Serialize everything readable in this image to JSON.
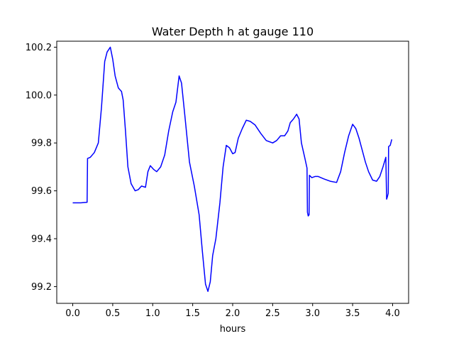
{
  "chart_data": {
    "type": "line",
    "title": "Water Depth h at gauge 110",
    "xlabel": "hours",
    "ylabel": "",
    "xlim": [
      -0.2,
      4.2
    ],
    "ylim": [
      99.13,
      100.225
    ],
    "x_ticks": [
      0.0,
      0.5,
      1.0,
      1.5,
      2.0,
      2.5,
      3.0,
      3.5,
      4.0
    ],
    "x_tick_labels": [
      "0.0",
      "0.5",
      "1.0",
      "1.5",
      "2.0",
      "2.5",
      "3.0",
      "3.5",
      "4.0"
    ],
    "y_ticks": [
      99.2,
      99.4,
      99.6,
      99.8,
      100.0,
      100.2
    ],
    "y_tick_labels": [
      "99.2",
      "99.4",
      "99.6",
      "99.8",
      "100.0",
      "100.2"
    ],
    "grid": false,
    "legend": "none",
    "series": [
      {
        "color": "#0000ff",
        "points": [
          [
            0.0,
            99.55
          ],
          [
            0.1,
            99.55
          ],
          [
            0.18,
            99.552
          ],
          [
            0.185,
            99.735
          ],
          [
            0.22,
            99.74
          ],
          [
            0.27,
            99.76
          ],
          [
            0.32,
            99.8
          ],
          [
            0.36,
            99.95
          ],
          [
            0.4,
            100.14
          ],
          [
            0.43,
            100.18
          ],
          [
            0.47,
            100.2
          ],
          [
            0.5,
            100.15
          ],
          [
            0.53,
            100.08
          ],
          [
            0.57,
            100.03
          ],
          [
            0.61,
            100.015
          ],
          [
            0.63,
            99.98
          ],
          [
            0.66,
            99.85
          ],
          [
            0.69,
            99.7
          ],
          [
            0.73,
            99.63
          ],
          [
            0.78,
            99.6
          ],
          [
            0.82,
            99.605
          ],
          [
            0.86,
            99.62
          ],
          [
            0.91,
            99.615
          ],
          [
            0.94,
            99.68
          ],
          [
            0.97,
            99.705
          ],
          [
            1.01,
            99.69
          ],
          [
            1.05,
            99.68
          ],
          [
            1.1,
            99.7
          ],
          [
            1.15,
            99.75
          ],
          [
            1.2,
            99.85
          ],
          [
            1.25,
            99.93
          ],
          [
            1.29,
            99.97
          ],
          [
            1.33,
            100.08
          ],
          [
            1.36,
            100.05
          ],
          [
            1.4,
            99.92
          ],
          [
            1.46,
            99.72
          ],
          [
            1.52,
            99.62
          ],
          [
            1.58,
            99.5
          ],
          [
            1.62,
            99.35
          ],
          [
            1.66,
            99.21
          ],
          [
            1.69,
            99.18
          ],
          [
            1.72,
            99.22
          ],
          [
            1.75,
            99.33
          ],
          [
            1.79,
            99.4
          ],
          [
            1.84,
            99.55
          ],
          [
            1.88,
            99.7
          ],
          [
            1.92,
            99.79
          ],
          [
            1.96,
            99.78
          ],
          [
            2.0,
            99.755
          ],
          [
            2.03,
            99.76
          ],
          [
            2.07,
            99.82
          ],
          [
            2.12,
            99.86
          ],
          [
            2.17,
            99.895
          ],
          [
            2.22,
            99.89
          ],
          [
            2.28,
            99.875
          ],
          [
            2.35,
            99.84
          ],
          [
            2.42,
            99.81
          ],
          [
            2.5,
            99.8
          ],
          [
            2.55,
            99.81
          ],
          [
            2.6,
            99.83
          ],
          [
            2.65,
            99.83
          ],
          [
            2.69,
            99.85
          ],
          [
            2.72,
            99.885
          ],
          [
            2.76,
            99.9
          ],
          [
            2.8,
            99.92
          ],
          [
            2.83,
            99.9
          ],
          [
            2.86,
            99.8
          ],
          [
            2.9,
            99.74
          ],
          [
            2.93,
            99.695
          ],
          [
            2.935,
            99.51
          ],
          [
            2.945,
            99.495
          ],
          [
            2.955,
            99.5
          ],
          [
            2.96,
            99.665
          ],
          [
            2.99,
            99.655
          ],
          [
            3.03,
            99.66
          ],
          [
            3.07,
            99.66
          ],
          [
            3.14,
            99.65
          ],
          [
            3.22,
            99.64
          ],
          [
            3.3,
            99.635
          ],
          [
            3.35,
            99.68
          ],
          [
            3.4,
            99.76
          ],
          [
            3.45,
            99.83
          ],
          [
            3.5,
            99.878
          ],
          [
            3.54,
            99.86
          ],
          [
            3.58,
            99.82
          ],
          [
            3.62,
            99.77
          ],
          [
            3.66,
            99.72
          ],
          [
            3.7,
            99.68
          ],
          [
            3.75,
            99.645
          ],
          [
            3.8,
            99.64
          ],
          [
            3.84,
            99.66
          ],
          [
            3.88,
            99.7
          ],
          [
            3.915,
            99.74
          ],
          [
            3.925,
            99.565
          ],
          [
            3.935,
            99.575
          ],
          [
            3.945,
            99.59
          ],
          [
            3.95,
            99.785
          ],
          [
            3.97,
            99.79
          ],
          [
            3.99,
            99.815
          ]
        ]
      }
    ]
  }
}
